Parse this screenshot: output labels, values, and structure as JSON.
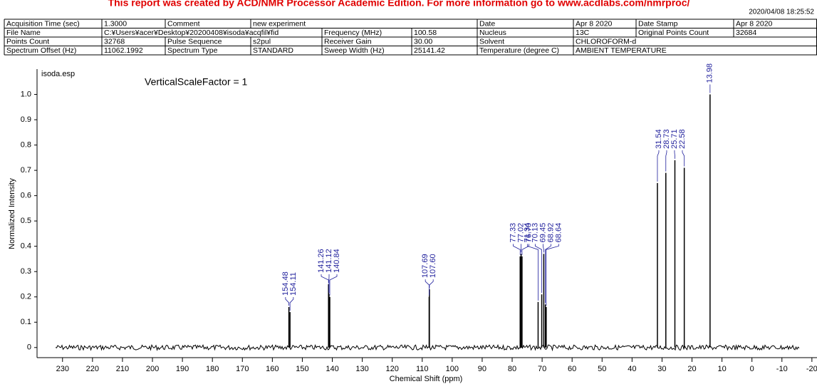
{
  "header": {
    "banner": "This report was created by ACD/NMR Processor Academic Edition. For more information go to www.acdlabs.com/nmrproc/",
    "timestamp": "2020/04/08 18:25:52"
  },
  "table": {
    "rows": [
      [
        "Acquisition Time (sec)",
        "1.3000",
        "Comment",
        "new experiment",
        null,
        null,
        "Date",
        "Apr  8 2020",
        "Date Stamp",
        "Apr  8 2020"
      ],
      [
        "File Name",
        "C:¥Users¥acer¥Desktop¥20200408¥isoda¥acqfil¥fid",
        null,
        null,
        "Frequency (MHz)",
        "100.58",
        "Nucleus",
        "13C",
        "Original Points Count",
        "32684"
      ],
      [
        "Points Count",
        "32768",
        "Pulse Sequence",
        "s2pul",
        "Receiver Gain",
        "30.00",
        "Solvent",
        "CHLOROFORM-d",
        null,
        null
      ],
      [
        "Spectrum Offset (Hz)",
        "11062.1992",
        "Spectrum Type",
        "STANDARD",
        "Sweep Width (Hz)",
        "25141.42",
        "Temperature (degree C)",
        "AMBIENT TEMPERATURE",
        null,
        null
      ]
    ]
  },
  "chart_data": {
    "type": "spectrum",
    "annotations": [
      "isoda.esp",
      "VerticalScaleFactor = 1"
    ],
    "xlabel": "Chemical Shift (ppm)",
    "ylabel": "Normalized Intensity",
    "x": [
      154.48,
      154.11,
      141.26,
      141.12,
      140.84,
      107.69,
      107.6,
      77.33,
      77.02,
      76.7,
      71.34,
      70.13,
      69.45,
      68.92,
      68.64,
      31.54,
      28.73,
      25.71,
      22.58,
      13.98
    ],
    "x_labels": [
      "154.48",
      "154.11",
      "141.26",
      "141.12",
      "140.84",
      "107.69",
      "107.60",
      "77.33",
      "77.02",
      "76.70",
      "71.34",
      "70.13",
      "69.45",
      "68.92",
      "68.64",
      "31.54",
      "28.73",
      "25.71",
      "22.58",
      "13.98"
    ],
    "values": [
      0.16,
      0.14,
      0.25,
      0.21,
      0.2,
      0.2,
      0.23,
      0.36,
      0.37,
      0.36,
      0.18,
      0.21,
      0.37,
      0.17,
      0.16,
      0.65,
      0.69,
      0.74,
      0.71,
      1.0
    ],
    "color": "#000000",
    "label_color": "#1f1f9c",
    "xlim": [
      238.5,
      -21.7
    ],
    "ylim": [
      -0.04,
      1.1
    ],
    "xticks": [
      230,
      220,
      210,
      200,
      190,
      180,
      170,
      160,
      150,
      140,
      130,
      120,
      110,
      100,
      90,
      80,
      70,
      60,
      50,
      40,
      30,
      20,
      10,
      0,
      -10,
      -20
    ],
    "yticks": [
      0,
      0.1,
      0.2,
      0.3,
      0.4,
      0.5,
      0.6,
      0.7,
      0.8,
      0.9,
      {
        "value": 1,
        "label": "1.0"
      }
    ]
  }
}
